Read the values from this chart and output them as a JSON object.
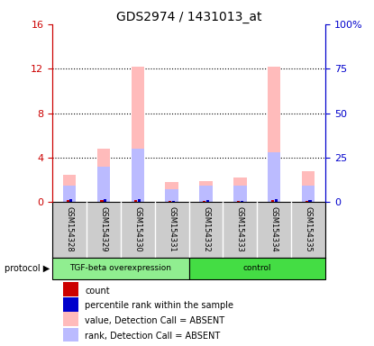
{
  "title": "GDS2974 / 1431013_at",
  "samples": [
    "GSM154328",
    "GSM154329",
    "GSM154330",
    "GSM154331",
    "GSM154332",
    "GSM154333",
    "GSM154334",
    "GSM154335"
  ],
  "pink_bar_heights": [
    2.5,
    4.8,
    12.2,
    1.8,
    1.9,
    2.2,
    12.2,
    2.8
  ],
  "blue_bar_heights": [
    1.5,
    3.2,
    4.8,
    1.2,
    1.5,
    1.5,
    4.5,
    1.5
  ],
  "red_bar_heights": [
    0.18,
    0.18,
    0.18,
    0.1,
    0.12,
    0.1,
    0.18,
    0.12
  ],
  "dark_blue_bar_heights": [
    0.25,
    0.25,
    0.25,
    0.15,
    0.18,
    0.15,
    0.25,
    0.18
  ],
  "ylim_left": [
    0,
    16
  ],
  "ylim_right": [
    0,
    100
  ],
  "yticks_left": [
    0,
    4,
    8,
    12,
    16
  ],
  "ytick_labels_left": [
    "0",
    "4",
    "8",
    "12",
    "16"
  ],
  "yticks_right": [
    0,
    25,
    50,
    75,
    100
  ],
  "ytick_labels_right": [
    "0",
    "25",
    "50",
    "75",
    "100%"
  ],
  "left_axis_color": "#cc0000",
  "right_axis_color": "#0000cc",
  "pink": "#ffbbbb",
  "light_blue": "#bbbbff",
  "red": "#cc0000",
  "dark_blue": "#0000cc",
  "tgf_color": "#90ee90",
  "ctrl_color": "#44dd44",
  "strip_bg": "#cccccc",
  "legend_entries": [
    {
      "color": "#cc0000",
      "label": "count"
    },
    {
      "color": "#0000cc",
      "label": "percentile rank within the sample"
    },
    {
      "color": "#ffbbbb",
      "label": "value, Detection Call = ABSENT"
    },
    {
      "color": "#bbbbff",
      "label": "rank, Detection Call = ABSENT"
    }
  ]
}
